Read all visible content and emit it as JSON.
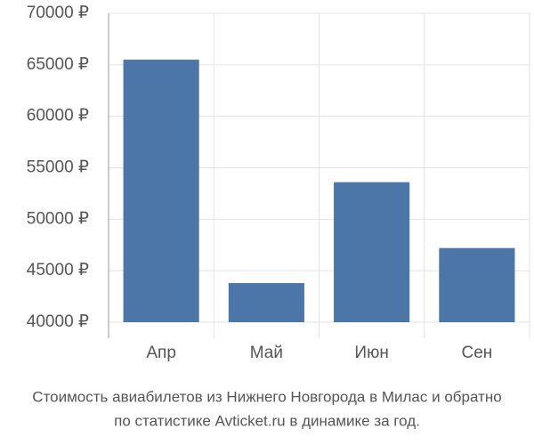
{
  "chart_data": {
    "type": "bar",
    "title": "Стоимость авиабилетов из Нижнего Новгорода в Милас и обратно",
    "subtitle": "по статистике Avticket.ru в динамике за год.",
    "categories": [
      "Апр",
      "Май",
      "Июн",
      "Сен"
    ],
    "values": [
      65500,
      43800,
      53600,
      47200
    ],
    "color": "#4d76a8",
    "ylim": [
      40000,
      70000
    ],
    "yticks": [
      {
        "value": 40000,
        "label": "40000 ₽"
      },
      {
        "value": 45000,
        "label": "45000 ₽"
      },
      {
        "value": 50000,
        "label": "50000 ₽"
      },
      {
        "value": 55000,
        "label": "55000 ₽"
      },
      {
        "value": 60000,
        "label": "60000 ₽"
      },
      {
        "value": 65000,
        "label": "65000 ₽"
      },
      {
        "value": 70000,
        "label": "70000 ₽"
      }
    ],
    "grid": true
  }
}
